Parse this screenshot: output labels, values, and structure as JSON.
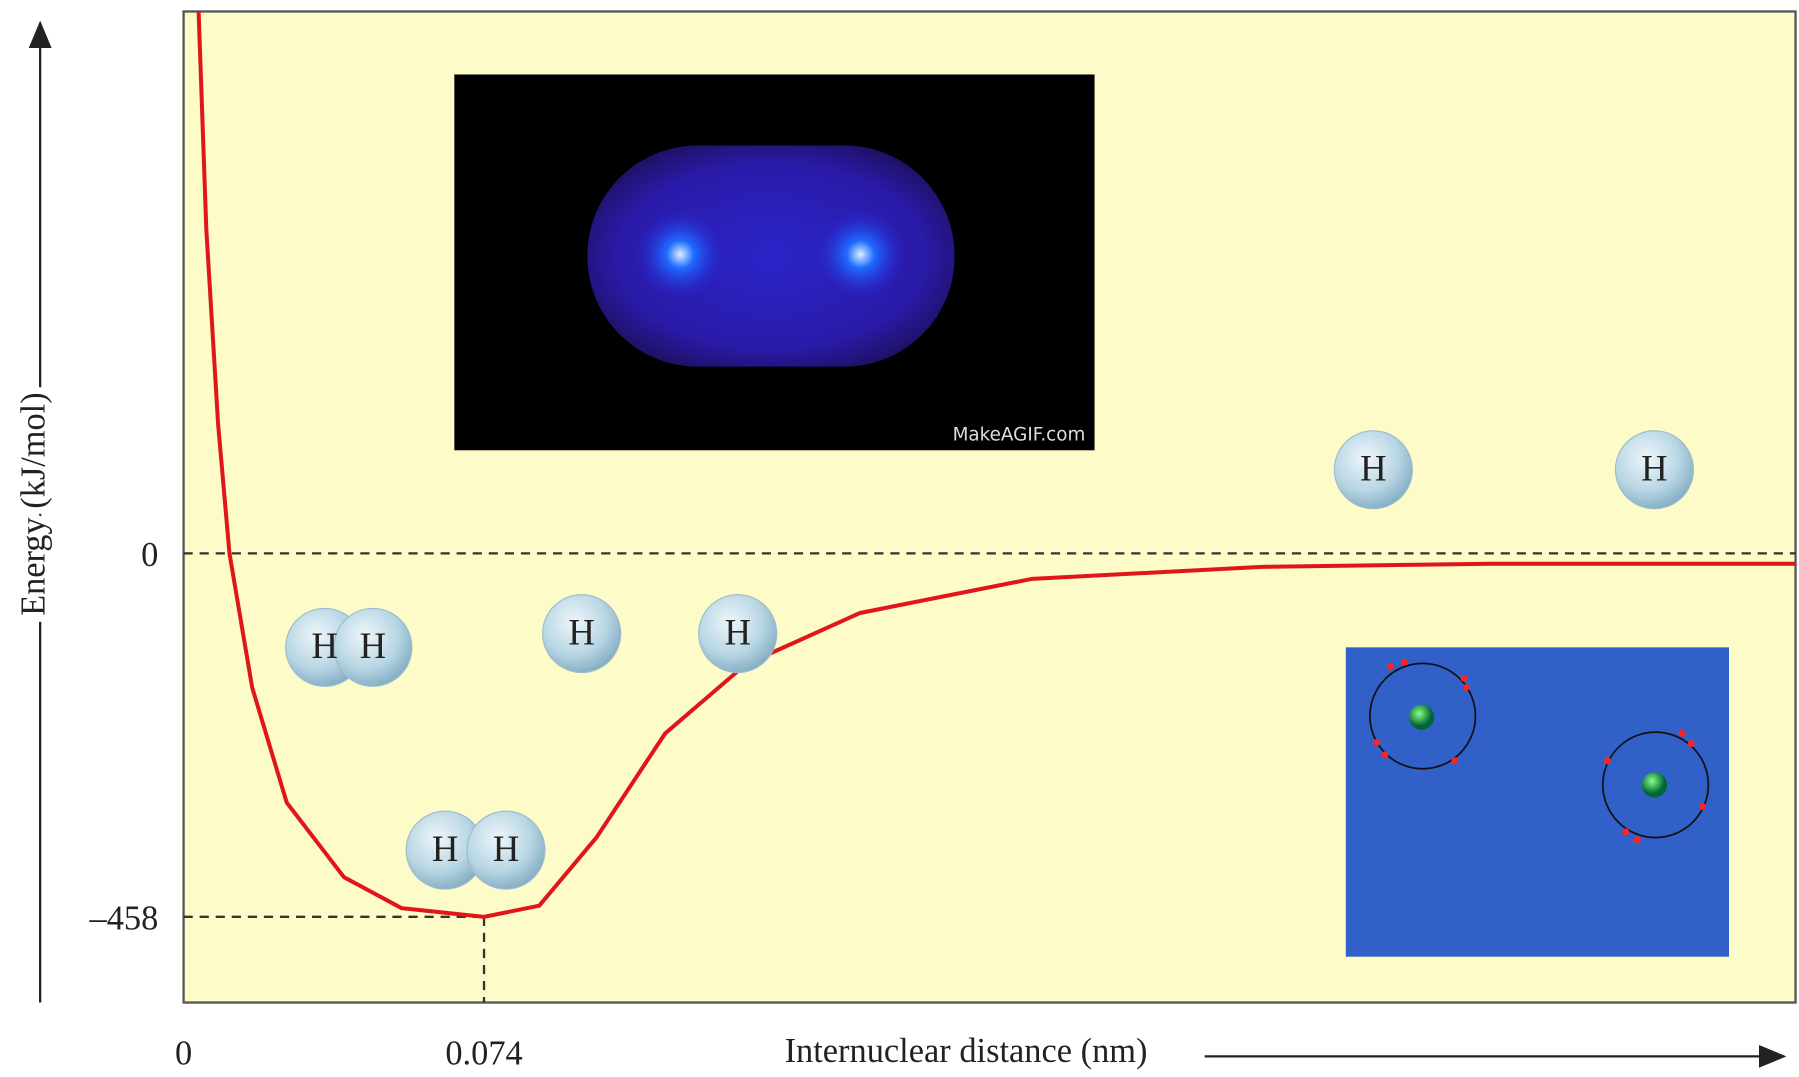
{
  "chart_data": {
    "type": "line",
    "y_label": "Energy (kJ/mol)",
    "x_label": "Internuclear distance (nm)",
    "xlim": [
      0,
      0.397
    ],
    "ylim": [
      -566,
      683
    ],
    "xticks": [
      0,
      0.074
    ],
    "yticks": [
      0,
      {
        "value": -458,
        "label": "–458"
      }
    ],
    "grid": false,
    "x": [
      0.0037,
      0.0056,
      0.0085,
      0.0113,
      0.0169,
      0.0254,
      0.0395,
      0.0537,
      0.074,
      0.0876,
      0.1017,
      0.1186,
      0.1384,
      0.1666,
      0.209,
      0.2655,
      0.3219,
      0.3968
    ],
    "series": [
      {
        "color": "#e0161b",
        "values": [
          683,
          409,
          163,
          0,
          -169,
          -314,
          -408,
          -447,
          -458,
          -444,
          -358,
          -227,
          -140,
          -75,
          -32,
          -17,
          -13,
          -13
        ]
      }
    ],
    "atom_labels": [
      "H",
      "H",
      "H",
      "H",
      "H",
      "H",
      "H",
      "H"
    ],
    "watermark": "MakeAGIF.com"
  }
}
